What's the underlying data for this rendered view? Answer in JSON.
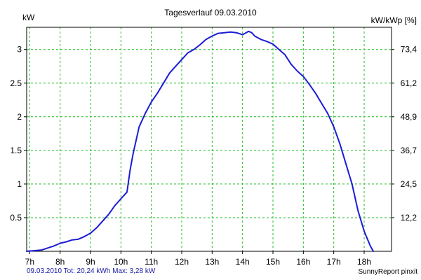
{
  "chart_data": {
    "type": "line",
    "title": "Tagesverlauf 09.03.2010",
    "ylabel": "kW",
    "y2label": "kW/kWp [%]",
    "xlabel": "",
    "x_ticks": [
      "7h",
      "8h",
      "9h",
      "10h",
      "11h",
      "12h",
      "13h",
      "14h",
      "15h",
      "16h",
      "17h",
      "18h"
    ],
    "y_ticks": [
      "0.5",
      "1",
      "1.5",
      "2",
      "2.5",
      "3"
    ],
    "y_tick_values": [
      0.5,
      1,
      1.5,
      2,
      2.5,
      3
    ],
    "y2_ticks": [
      "12,2",
      "24,5",
      "36,7",
      "48,9",
      "61,2",
      "73,4"
    ],
    "y2_tick_values": [
      0.5,
      1,
      1.5,
      2,
      2.5,
      3
    ],
    "xlim": [
      6.9,
      18.9
    ],
    "ylim": [
      0,
      3.33
    ],
    "grid": true,
    "line_color": "#1c1cd8",
    "grid_color": "#22bb22",
    "series": [
      {
        "x": [
          6.9,
          7.4,
          7.6,
          7.8,
          8.0,
          8.2,
          8.4,
          8.6,
          8.8,
          9.0,
          9.2,
          9.4,
          9.6,
          9.8,
          10.0,
          10.2,
          10.3,
          10.4,
          10.5,
          10.6,
          10.8,
          11.0,
          11.2,
          11.4,
          11.6,
          11.8,
          12.0,
          12.2,
          12.4,
          12.6,
          12.8,
          13.0,
          13.2,
          13.4,
          13.6,
          13.8,
          14.0,
          14.2,
          14.3,
          14.4,
          14.6,
          14.8,
          15.0,
          15.2,
          15.4,
          15.6,
          15.8,
          16.0,
          16.2,
          16.4,
          16.6,
          16.8,
          17.0,
          17.2,
          17.4,
          17.6,
          17.8,
          18.0,
          18.2,
          18.3
        ],
        "values": [
          0.0,
          0.02,
          0.05,
          0.08,
          0.12,
          0.14,
          0.17,
          0.18,
          0.22,
          0.27,
          0.35,
          0.45,
          0.55,
          0.68,
          0.78,
          0.88,
          1.2,
          1.45,
          1.65,
          1.85,
          2.05,
          2.22,
          2.35,
          2.5,
          2.65,
          2.75,
          2.85,
          2.95,
          3.0,
          3.07,
          3.15,
          3.2,
          3.24,
          3.25,
          3.26,
          3.25,
          3.22,
          3.27,
          3.25,
          3.2,
          3.15,
          3.12,
          3.08,
          3.0,
          2.92,
          2.78,
          2.68,
          2.6,
          2.48,
          2.35,
          2.2,
          2.05,
          1.85,
          1.6,
          1.3,
          1.0,
          0.6,
          0.3,
          0.08,
          0.0
        ]
      }
    ]
  },
  "footer": {
    "stats": "09.03.2010 Tot: 20,24 kWh Max: 3,28 kW",
    "brand": "SunnyReport pinxit"
  }
}
